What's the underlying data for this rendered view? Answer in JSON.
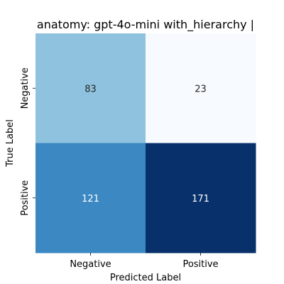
{
  "chart_data": {
    "type": "heatmap",
    "title": "anatomy: gpt-4o-mini with_hierarchy |",
    "xlabel": "Predicted Label",
    "ylabel": "True Label",
    "x_categories": [
      "Negative",
      "Positive"
    ],
    "y_categories": [
      "Negative",
      "Positive"
    ],
    "values": [
      [
        83,
        23
      ],
      [
        121,
        171
      ]
    ],
    "colormap": "Blues",
    "cell_colors": [
      [
        "#8fc2de",
        "#f7fbff"
      ],
      [
        "#3b88c3",
        "#08306b"
      ]
    ],
    "value_text_colors": [
      [
        "#262626",
        "#262626"
      ],
      [
        "#ffffff",
        "#ffffff"
      ]
    ],
    "colorbar": false,
    "grid": false
  }
}
